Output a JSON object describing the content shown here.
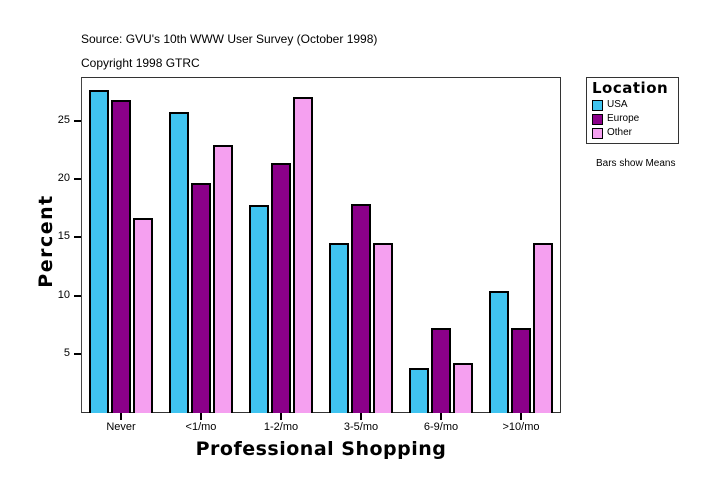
{
  "header": {
    "source": "Source: GVU's 10th WWW User Survey (October 1998)",
    "copyright": "Copyright 1998 GTRC"
  },
  "legend": {
    "title": "Location",
    "items": [
      {
        "label": "USA",
        "color": "#40C4F0"
      },
      {
        "label": "Europe",
        "color": "#8B0089"
      },
      {
        "label": "Other",
        "color": "#F5A0F0"
      }
    ]
  },
  "note": "Bars show Means",
  "chart_data": {
    "type": "bar",
    "title": "",
    "xlabel": "Professional Shopping",
    "ylabel": "Percent",
    "categories": [
      "Never",
      "<1/mo",
      "1-2/mo",
      "3-5/mo",
      "6-9/mo",
      ">10/mo"
    ],
    "series": [
      {
        "name": "USA",
        "color": "#40C4F0",
        "values": [
          27.7,
          25.8,
          17.8,
          14.5,
          3.8,
          10.4
        ]
      },
      {
        "name": "Europe",
        "color": "#8B0089",
        "values": [
          26.8,
          19.7,
          21.4,
          17.9,
          7.2,
          7.2
        ]
      },
      {
        "name": "Other",
        "color": "#F5A0F0",
        "values": [
          16.7,
          22.9,
          27.1,
          14.5,
          4.2,
          14.5
        ]
      }
    ],
    "yticks": [
      5,
      10,
      15,
      20,
      25
    ],
    "ylim": [
      0,
      28.8
    ],
    "grid": false,
    "legend_position": "right",
    "annotations": [
      "Bars show Means"
    ]
  }
}
